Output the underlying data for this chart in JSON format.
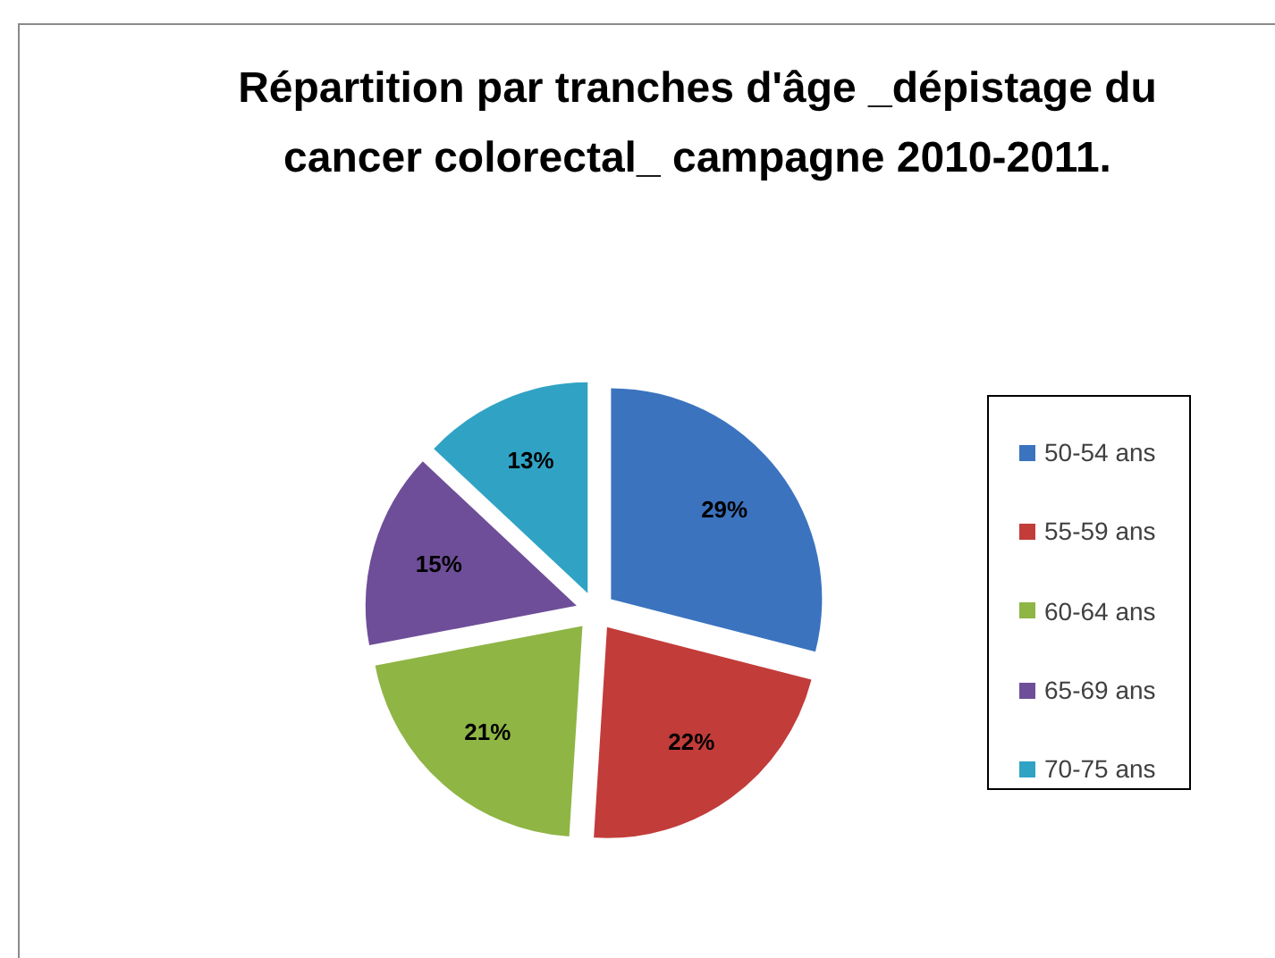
{
  "chart_data": {
    "type": "pie",
    "title": "Répartition par tranches d'âge _dépistage du cancer colorectal_ campagne 2010-2011.",
    "categories": [
      "50-54 ans",
      "55-59 ans",
      "60-64 ans",
      "65-69 ans",
      "70-75 ans"
    ],
    "values": [
      29,
      22,
      21,
      15,
      13
    ],
    "value_labels": [
      "29%",
      "22%",
      "21%",
      "15%",
      "13%"
    ],
    "colors": [
      "#3b73bf",
      "#c23c3a",
      "#8fb545",
      "#6e4e98",
      "#30a3c5"
    ],
    "legend": "right"
  }
}
